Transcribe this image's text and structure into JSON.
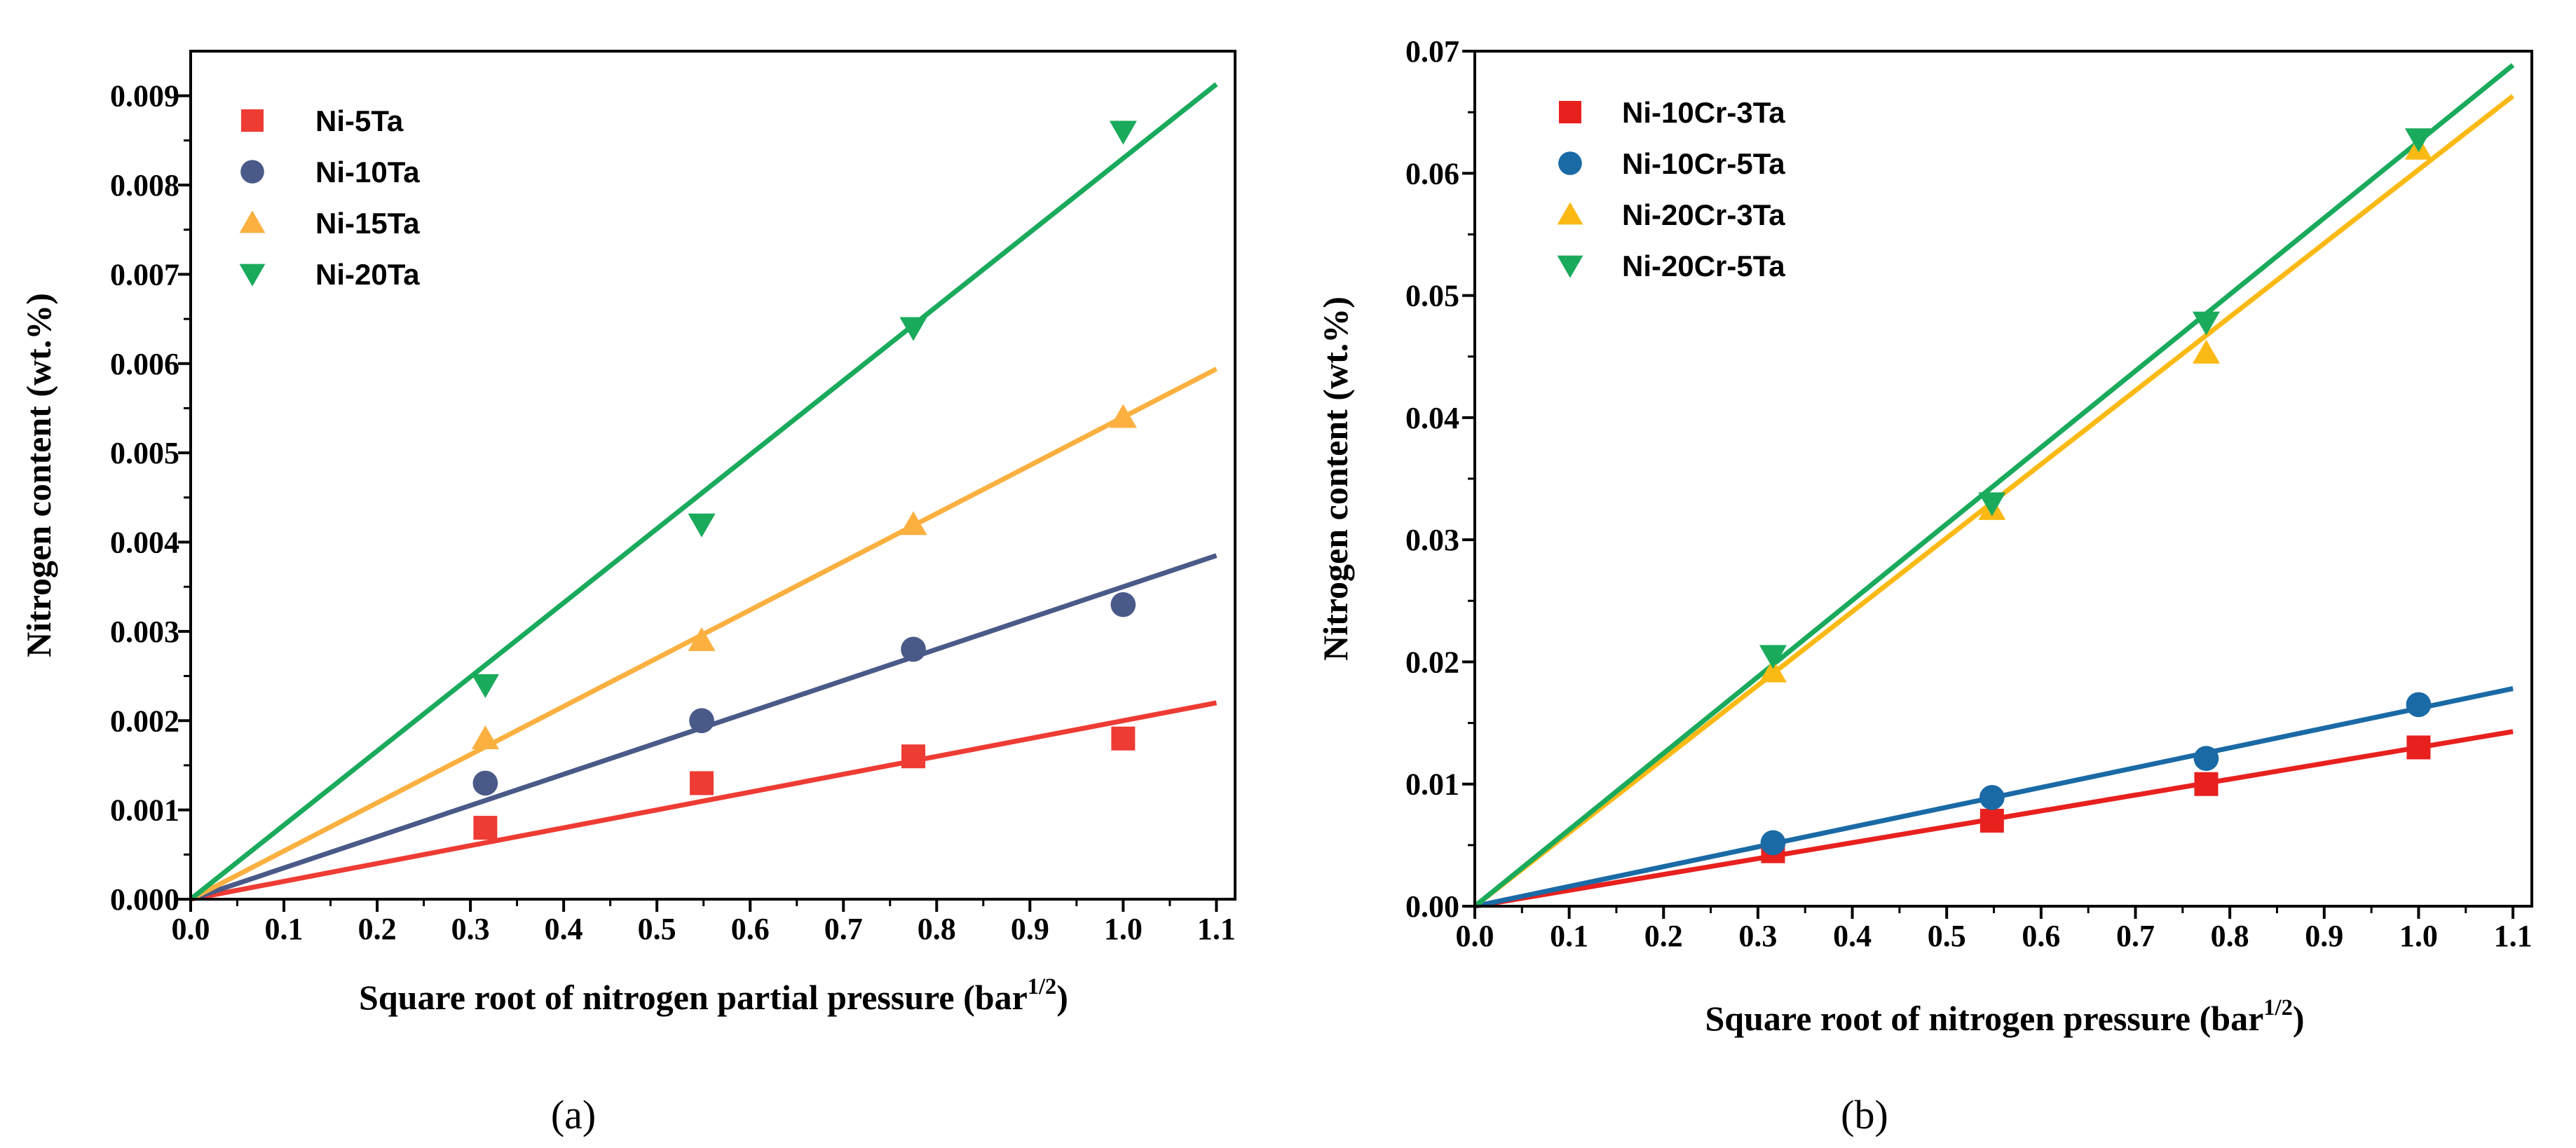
{
  "chart_data": [
    {
      "type": "scatter",
      "panel": "a",
      "panel_label": "(a)",
      "xlabel": "Square root of nitrogen partial pressure",
      "xlabel_unit_base": "(bar",
      "xlabel_unit_sup": "1/2",
      "xlabel_unit_close": ")",
      "ylabel": "Nitrogen content (wt.%)",
      "xlim": [
        0.0,
        1.12
      ],
      "ylim": [
        0.0,
        0.0095
      ],
      "xticks": [
        0.0,
        0.1,
        0.2,
        0.3,
        0.4,
        0.5,
        0.6,
        0.7,
        0.8,
        0.9,
        1.0,
        1.1
      ],
      "xtick_labels": [
        "0.0",
        "0.1",
        "0.2",
        "0.3",
        "0.4",
        "0.5",
        "0.6",
        "0.7",
        "0.8",
        "0.9",
        "1.0",
        "1.1"
      ],
      "yticks": [
        0.0,
        0.001,
        0.002,
        0.003,
        0.004,
        0.005,
        0.006,
        0.007,
        0.008,
        0.009
      ],
      "ytick_labels": [
        "0.000",
        "0.001",
        "0.002",
        "0.003",
        "0.004",
        "0.005",
        "0.006",
        "0.007",
        "0.008",
        "0.009"
      ],
      "legend_position": "top-left",
      "series": [
        {
          "name": "Ni-5Ta",
          "marker": "square",
          "color": "#ee3b33",
          "x": [
            0.316,
            0.548,
            0.775,
            1.0
          ],
          "y": [
            0.0008,
            0.0013,
            0.0016,
            0.0018
          ],
          "fit_slope": 0.002,
          "fit_x_end": 1.1
        },
        {
          "name": "Ni-10Ta",
          "marker": "circle",
          "color": "#4a5a88",
          "x": [
            0.316,
            0.548,
            0.775,
            1.0
          ],
          "y": [
            0.0013,
            0.002,
            0.0028,
            0.0033
          ],
          "fit_slope": 0.0035,
          "fit_x_end": 1.1
        },
        {
          "name": "Ni-15Ta",
          "marker": "triangle-up",
          "color": "#fbb040",
          "x": [
            0.316,
            0.548,
            0.775,
            1.0
          ],
          "y": [
            0.0018,
            0.0029,
            0.0042,
            0.0054
          ],
          "fit_slope": 0.0054,
          "fit_x_end": 1.1
        },
        {
          "name": "Ni-20Ta",
          "marker": "triangle-down",
          "color": "#1aaa5c",
          "x": [
            0.316,
            0.548,
            0.775,
            1.0
          ],
          "y": [
            0.0024,
            0.0042,
            0.0064,
            0.0086
          ],
          "fit_slope": 0.0083,
          "fit_x_end": 1.1
        }
      ]
    },
    {
      "type": "scatter",
      "panel": "b",
      "panel_label": "(b)",
      "xlabel": "Square root of nitrogen pressure",
      "xlabel_unit_base": "(bar",
      "xlabel_unit_sup": "1/2",
      "xlabel_unit_close": ")",
      "ylabel": "Nitrogen content (wt.%)",
      "xlim": [
        0.0,
        1.12
      ],
      "ylim": [
        0.0,
        0.07
      ],
      "xticks": [
        0.0,
        0.1,
        0.2,
        0.3,
        0.4,
        0.5,
        0.6,
        0.7,
        0.8,
        0.9,
        1.0,
        1.1
      ],
      "xtick_labels": [
        "0.0",
        "0.1",
        "0.2",
        "0.3",
        "0.4",
        "0.5",
        "0.6",
        "0.7",
        "0.8",
        "0.9",
        "1.0",
        "1.1"
      ],
      "yticks": [
        0.0,
        0.01,
        0.02,
        0.03,
        0.04,
        0.05,
        0.06,
        0.07
      ],
      "ytick_labels": [
        "0.00",
        "0.01",
        "0.02",
        "0.03",
        "0.04",
        "0.05",
        "0.06",
        "0.07"
      ],
      "legend_position": "top-left",
      "series": [
        {
          "name": "Ni-10Cr-3Ta",
          "marker": "square",
          "color": "#e8201e",
          "x": [
            0.316,
            0.548,
            0.775,
            1.0
          ],
          "y": [
            0.0045,
            0.007,
            0.01,
            0.013
          ],
          "fit_slope": 0.013,
          "fit_x_end": 1.1
        },
        {
          "name": "Ni-10Cr-5Ta",
          "marker": "circle",
          "color": "#1a6aa6",
          "x": [
            0.316,
            0.548,
            0.775,
            1.0
          ],
          "y": [
            0.0052,
            0.0089,
            0.0121,
            0.0165
          ],
          "fit_slope": 0.0162,
          "fit_x_end": 1.1
        },
        {
          "name": "Ni-20Cr-3Ta",
          "marker": "triangle-up",
          "color": "#fbb914",
          "x": [
            0.316,
            0.548,
            0.775,
            1.0
          ],
          "y": [
            0.0192,
            0.0325,
            0.0453,
            0.062
          ],
          "fit_slope": 0.0603,
          "fit_x_end": 1.1
        },
        {
          "name": "Ni-20Cr-5Ta",
          "marker": "triangle-down",
          "color": "#1aaa5c",
          "x": [
            0.316,
            0.548,
            0.775,
            1.0
          ],
          "y": [
            0.0205,
            0.033,
            0.0478,
            0.0628
          ],
          "fit_slope": 0.0626,
          "fit_x_end": 1.1
        }
      ]
    }
  ]
}
